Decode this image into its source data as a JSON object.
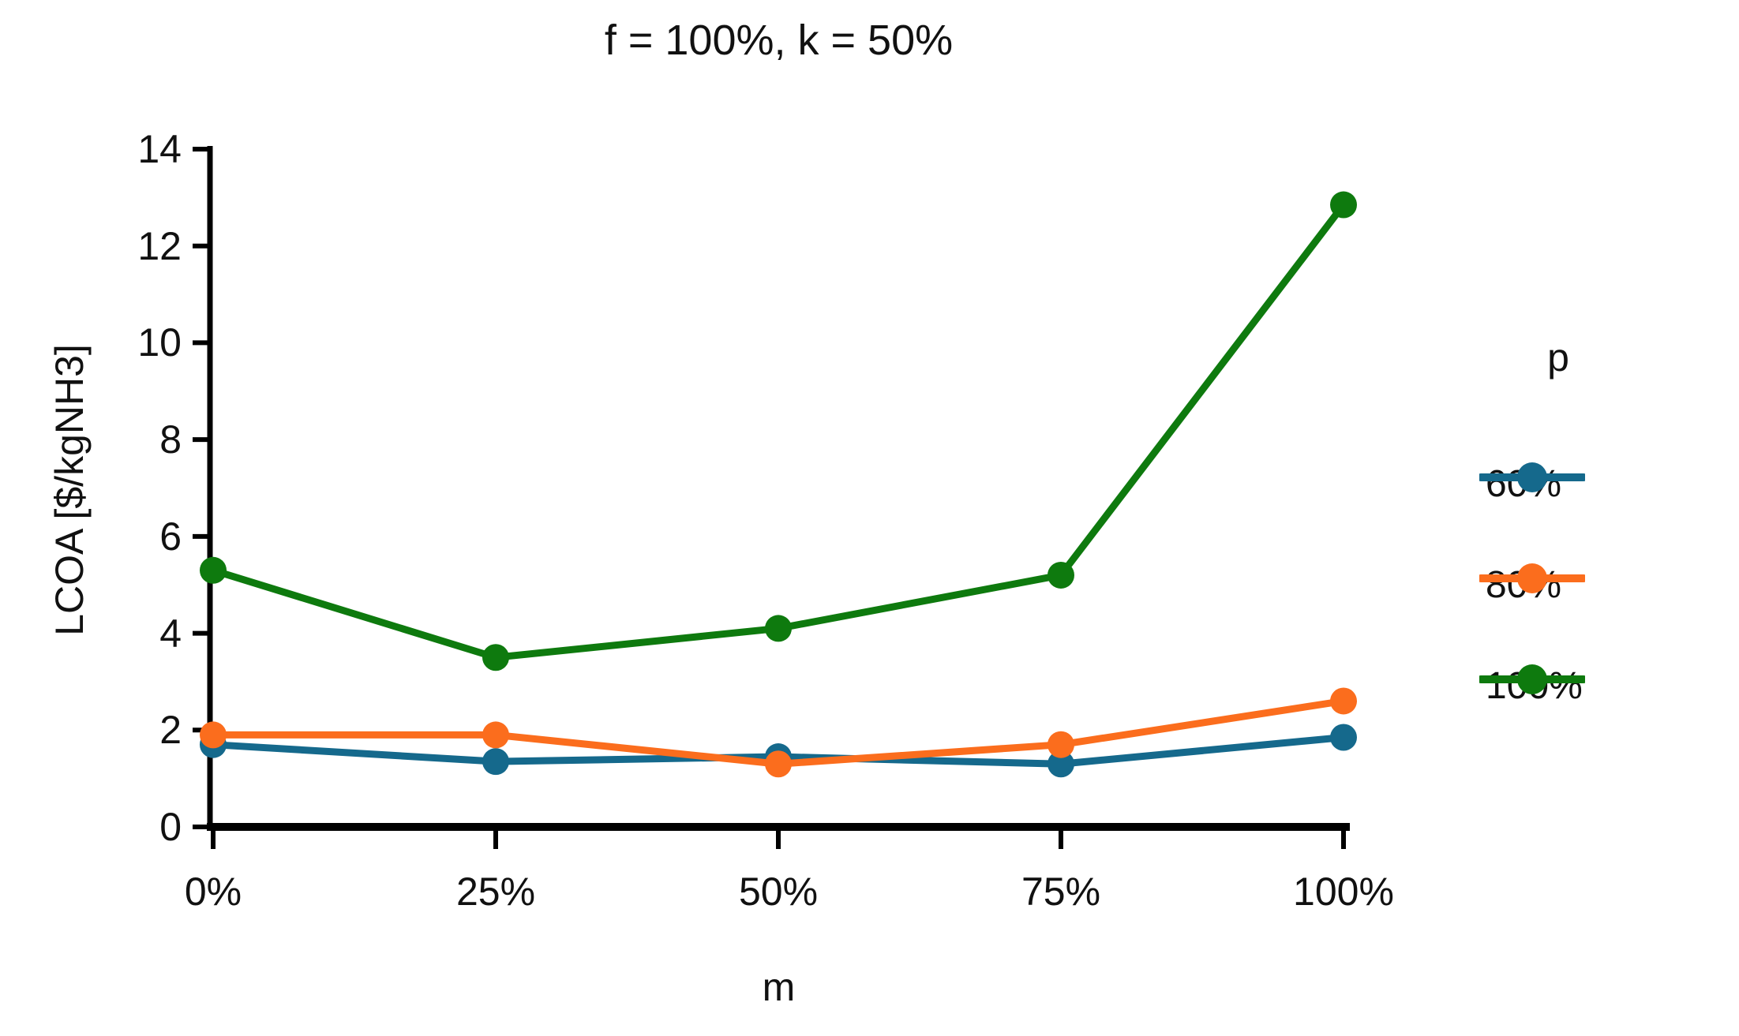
{
  "chart_data": {
    "type": "line",
    "title": "f = 100%, k = 50%",
    "xlabel": "m",
    "ylabel": "LCOA [$/kgNH3]",
    "categories": [
      "0%",
      "25%",
      "50%",
      "75%",
      "100%"
    ],
    "y_ticks": [
      0,
      2,
      4,
      6,
      8,
      10,
      12,
      14
    ],
    "ylim": [
      0,
      14
    ],
    "grid": false,
    "legend_title": "p",
    "legend_position": "right",
    "axis_color": "#000000",
    "series": [
      {
        "name": "60%",
        "color": "#15698c",
        "values": [
          1.7,
          1.35,
          1.45,
          1.3,
          1.85
        ]
      },
      {
        "name": "80%",
        "color": "#fb6d1d",
        "values": [
          1.9,
          1.9,
          1.3,
          1.7,
          2.6
        ]
      },
      {
        "name": "100%",
        "color": "#0e7a0e",
        "values": [
          5.3,
          3.5,
          4.1,
          5.2,
          12.85
        ]
      }
    ]
  }
}
